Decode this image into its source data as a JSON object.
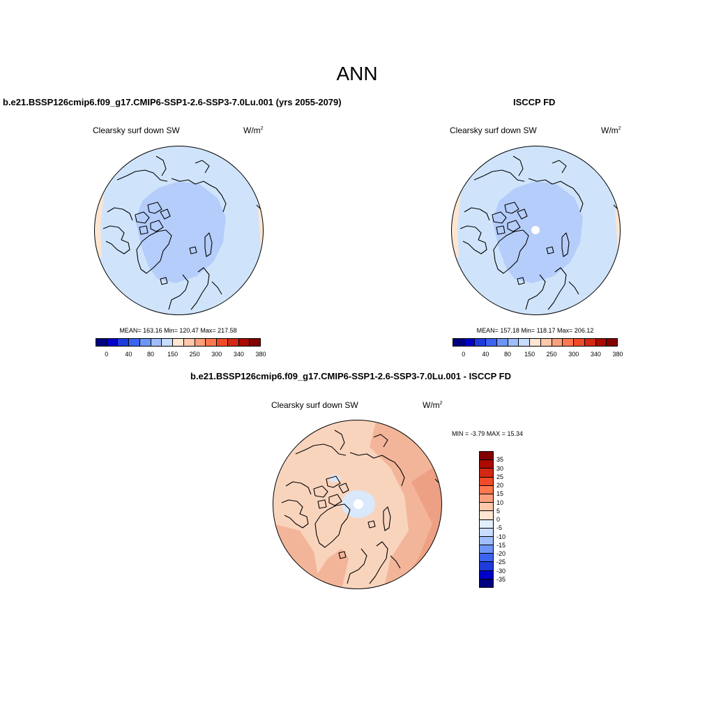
{
  "main_title": "ANN",
  "panels": [
    {
      "title": "b.e21.BSSP126cmip6.f09_g17.CMIP6-SSP1-2.6-SSP3-7.0Lu.001 (yrs 2055-2079)",
      "variable": "Clearsky surf down SW",
      "units_base": "W/m",
      "units_exp": "2",
      "stats": "MEAN= 163.16  Min= 120.47  Max= 217.58"
    },
    {
      "title": "ISCCP FD",
      "variable": "Clearsky surf down SW",
      "units_base": "W/m",
      "units_exp": "2",
      "stats": "MEAN= 157.18  Min= 118.17  Max= 206.12"
    },
    {
      "title": "b.e21.BSSP126cmip6.f09_g17.CMIP6-SSP1-2.6-SSP3-7.0Lu.001 - ISCCP FD",
      "variable": "Clearsky surf down SW",
      "units_base": "W/m",
      "units_exp": "2",
      "stats": "MIN =  -3.79 MAX =  15.34"
    }
  ],
  "abs_colorbar": {
    "colors": [
      "#000080",
      "#0000c8",
      "#1e3cdc",
      "#3c64f0",
      "#6e96f5",
      "#a0beff",
      "#c8dcff",
      "#ffe6d2",
      "#ffc8aa",
      "#ffa07d",
      "#ff7850",
      "#f04b28",
      "#d22814",
      "#aa0a00",
      "#820000"
    ],
    "tick_labels": [
      "0",
      "40",
      "80",
      "150",
      "250",
      "300",
      "340",
      "380"
    ],
    "tick_boundaries": [
      1,
      3,
      5,
      7,
      9,
      11,
      13,
      15
    ]
  },
  "diff_colorbar": {
    "colors": [
      "#820000",
      "#aa0a00",
      "#d22814",
      "#f04b28",
      "#ff7850",
      "#ffa07d",
      "#ffc8aa",
      "#ffe6d2",
      "#e1eeff",
      "#c8dcff",
      "#a0beff",
      "#6e96f5",
      "#3c64f0",
      "#1e3cdc",
      "#0000c8",
      "#000080"
    ],
    "tick_labels": [
      "35",
      "30",
      "25",
      "20",
      "15",
      "10",
      "5",
      "0",
      "-5",
      "-10",
      "-15",
      "-20",
      "-25",
      "-30",
      "-35"
    ]
  },
  "map_colors": {
    "outer_ring": "#cfe4fb",
    "inner_region": "#b5cdfa",
    "edge_warm": "#fde5d2",
    "diff_base": "#f9d4bd",
    "diff_warm": "#f3b599",
    "diff_strong": "#eda083",
    "diff_cool": "#d9e8fb",
    "pole_hole": "#ffffff"
  }
}
